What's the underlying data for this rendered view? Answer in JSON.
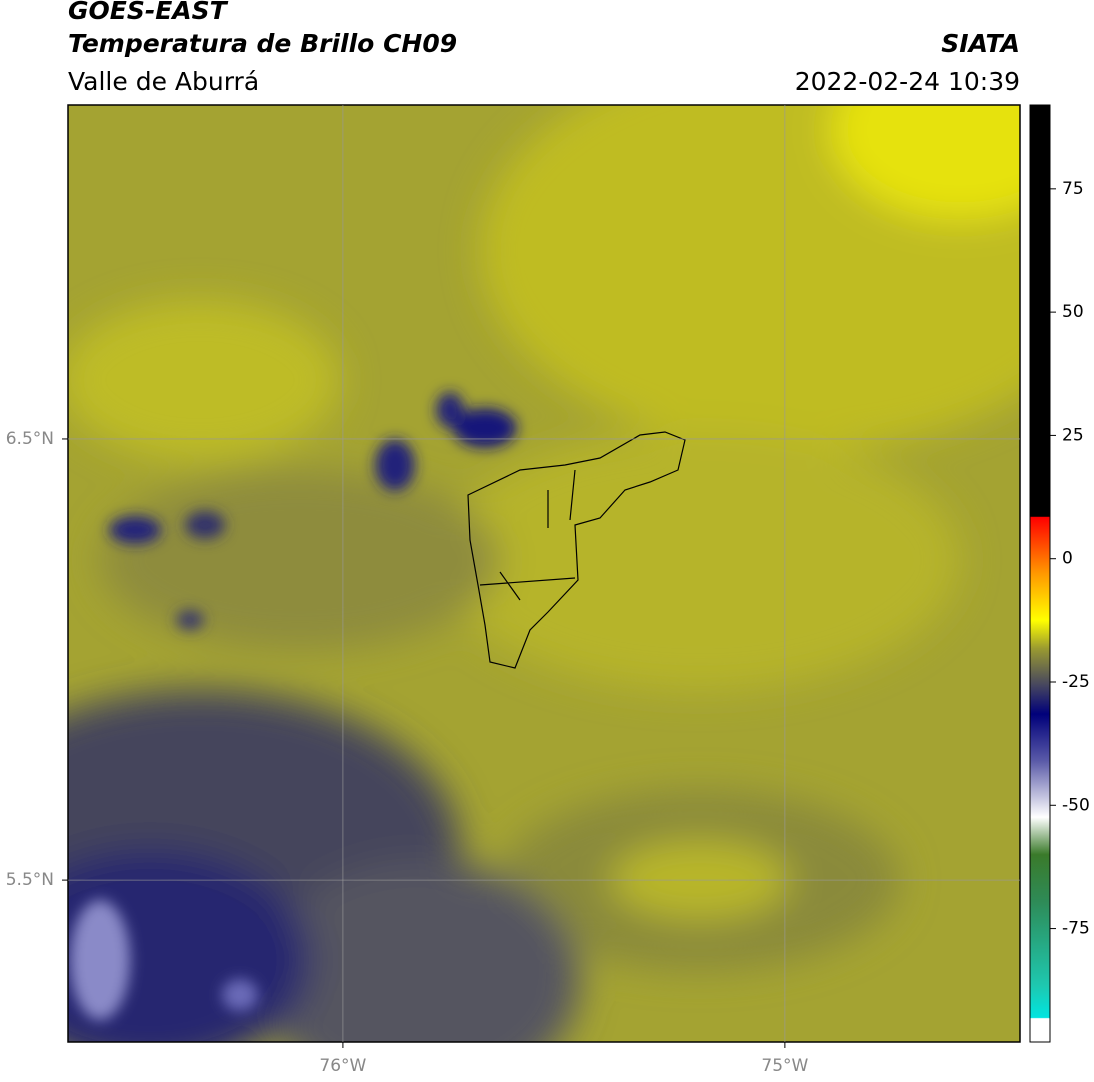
{
  "header": {
    "title": "GOES-EAST",
    "subtitle": "Temperatura de Brillo CH09",
    "region": "Valle de Aburrá",
    "source": "SIATA",
    "datetime": "2022-02-24 10:39"
  },
  "map": {
    "lonlim": [
      -76.622,
      -74.468
    ],
    "latlim": [
      5.133,
      7.257
    ],
    "lonticks": [
      {
        "value": -76,
        "label": "76°W"
      },
      {
        "value": -75,
        "label": "75°W"
      }
    ],
    "latticks": [
      {
        "value": 6.5,
        "label": "6.5°N"
      },
      {
        "value": 5.5,
        "label": "5.5°N"
      }
    ]
  },
  "colorbar": {
    "lim": [
      -98,
      92
    ],
    "ticks": [
      75,
      50,
      25,
      0,
      -25,
      -50,
      -75
    ]
  }
}
